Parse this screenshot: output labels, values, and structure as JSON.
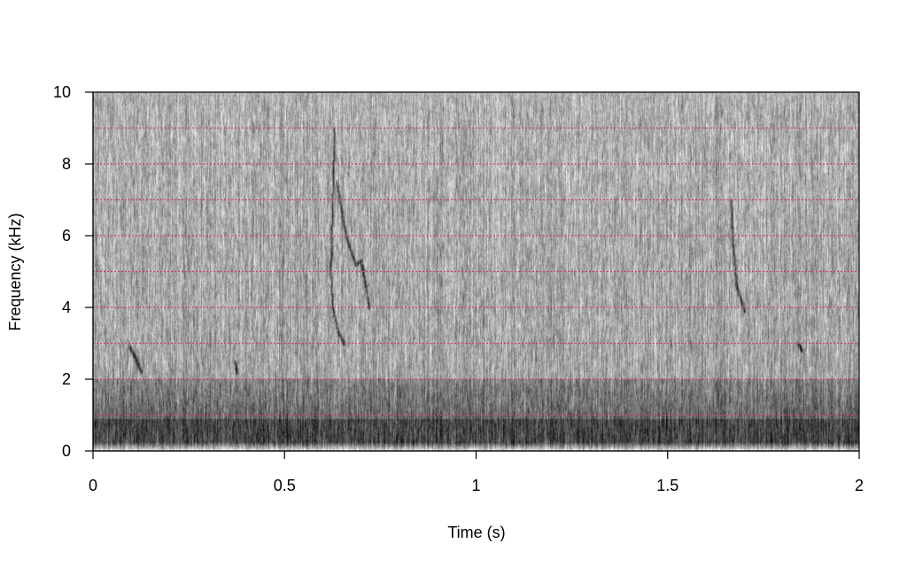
{
  "chart_data": {
    "type": "heatmap",
    "subtype": "spectrogram",
    "title": "",
    "xlabel": "Time (s)",
    "ylabel": "Frequency (kHz)",
    "xlim": [
      0,
      2
    ],
    "ylim": [
      0,
      10
    ],
    "x_ticks": [
      0,
      0.5,
      1,
      1.5,
      2
    ],
    "x_tick_labels": [
      "0",
      "0.5",
      "1",
      "1.5",
      "2"
    ],
    "y_ticks": [
      0,
      2,
      4,
      6,
      8,
      10
    ],
    "y_tick_labels": [
      "0",
      "2",
      "4",
      "6",
      "8",
      "10"
    ],
    "grid": {
      "on": true,
      "axis": "y",
      "step_khz": 1,
      "style": "dotted",
      "color": "#d0406a"
    },
    "colormap": "grayscale (dark = high amplitude)",
    "legend": "none"
  }
}
